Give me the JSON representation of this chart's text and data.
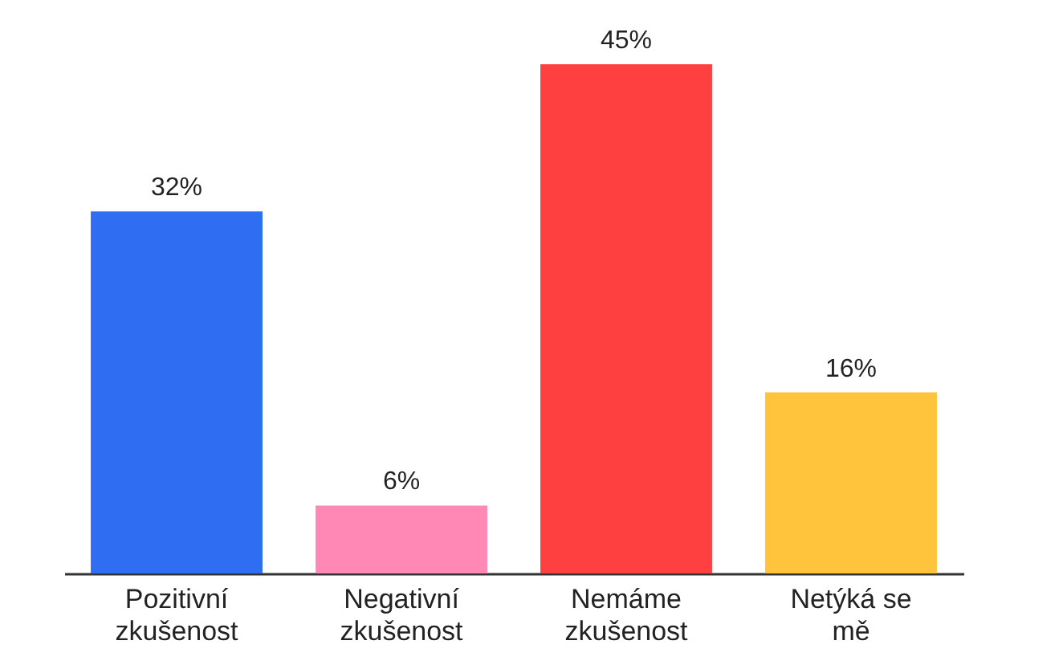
{
  "chart_data": {
    "type": "bar",
    "categories": [
      "Pozitivní zkušenost",
      "Negativní zkušenost",
      "Nemáme zkušenost",
      "Netýká se mě"
    ],
    "values": [
      32,
      6,
      45,
      16
    ],
    "colors": [
      "#2f6ef2",
      "#ff88b5",
      "#ff4040",
      "#ffc43c"
    ],
    "value_labels": [
      "32%",
      "6%",
      "45%",
      "16%"
    ],
    "grid": false
  }
}
